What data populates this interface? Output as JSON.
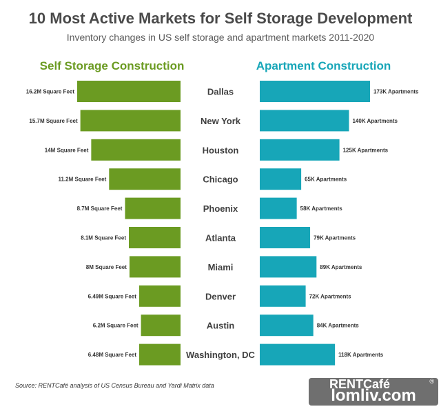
{
  "header": {
    "title": "10 Most Active Markets for Self Storage Development",
    "subtitle": "Inventory changes in US self storage and apartment markets 2011-2020"
  },
  "colors": {
    "storage": "#6b9b22",
    "apartment": "#17a6b8",
    "text": "#333333",
    "city": "#404040"
  },
  "chart_data": {
    "type": "bar",
    "title": "10 Most Active Markets for Self Storage Development",
    "subtitle": "Inventory changes in US self storage and apartment markets 2011-2020",
    "categories": [
      "Dallas",
      "New York",
      "Houston",
      "Chicago",
      "Phoenix",
      "Atlanta",
      "Miami",
      "Denver",
      "Austin",
      "Washington, DC"
    ],
    "series": [
      {
        "name": "Self Storage Construction",
        "unit": "M Square Feet",
        "values": [
          16.2,
          15.7,
          14,
          11.2,
          8.7,
          8.1,
          8,
          6.49,
          6.2,
          6.48
        ],
        "labels": [
          "16.2M Square Feet",
          "15.7M Square Feet",
          "14M Square Feet",
          "11.2M Square Feet",
          "8.7M Square Feet",
          "8.1M Square Feet",
          "8M Square Feet",
          "6.49M Square Feet",
          "6.2M Square Feet",
          "6.48M Square Feet"
        ]
      },
      {
        "name": "Apartment Construction",
        "unit": "K Apartments",
        "values": [
          173,
          140,
          125,
          65,
          58,
          79,
          89,
          72,
          84,
          118
        ],
        "labels": [
          "173K Apartments",
          "140K Apartments",
          "125K Apartments",
          "65K Apartments",
          "58K Apartments",
          "79K Apartments",
          "89K Apartments",
          "72K Apartments",
          "84K Apartments",
          "118K Apartments"
        ]
      }
    ],
    "legend": "top"
  },
  "footer": {
    "source": "Source: RENTCafé analysis of US Census Bureau and Yardi Matrix data",
    "brand": "RENTCafé",
    "brand_reg": "®",
    "watermark": "lomliv.com"
  }
}
